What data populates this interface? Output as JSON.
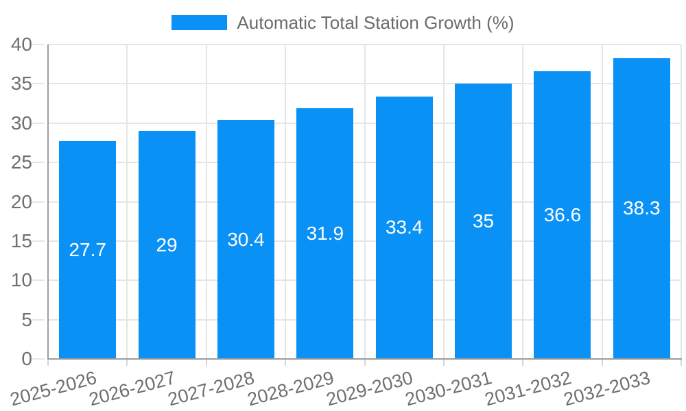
{
  "legend": {
    "label": "Automatic Total Station Growth (%)"
  },
  "chart_data": {
    "type": "bar",
    "title": "Automatic Total Station Growth (%)",
    "categories": [
      "2025-2026",
      "2026-2027",
      "2027-2028",
      "2028-2029",
      "2029-2030",
      "2030-2031",
      "2031-2032",
      "2032-2033"
    ],
    "values": [
      27.7,
      29,
      30.4,
      31.9,
      33.4,
      35,
      36.6,
      38.3
    ],
    "bar_labels": [
      "27.7",
      "29",
      "30.4",
      "31.9",
      "33.4",
      "35",
      "36.6",
      "38.3"
    ],
    "ytick_labels": [
      "0",
      "5",
      "10",
      "15",
      "20",
      "25",
      "30",
      "35",
      "40"
    ],
    "xlabel": "",
    "ylabel": "",
    "ylim": [
      0,
      40
    ],
    "ytick_step": 5,
    "grid": true,
    "legend_position": "top",
    "x_label_rotation_deg": -15,
    "colors": {
      "bar": "#0a91f5",
      "bar_value_label": "#ffffff",
      "grid": "#e5e5e5",
      "tick": "#d6d6d6",
      "axis": "#9c9c9c",
      "tick_label": "#6f6f6f",
      "legend_text": "#6b6b6b"
    }
  }
}
